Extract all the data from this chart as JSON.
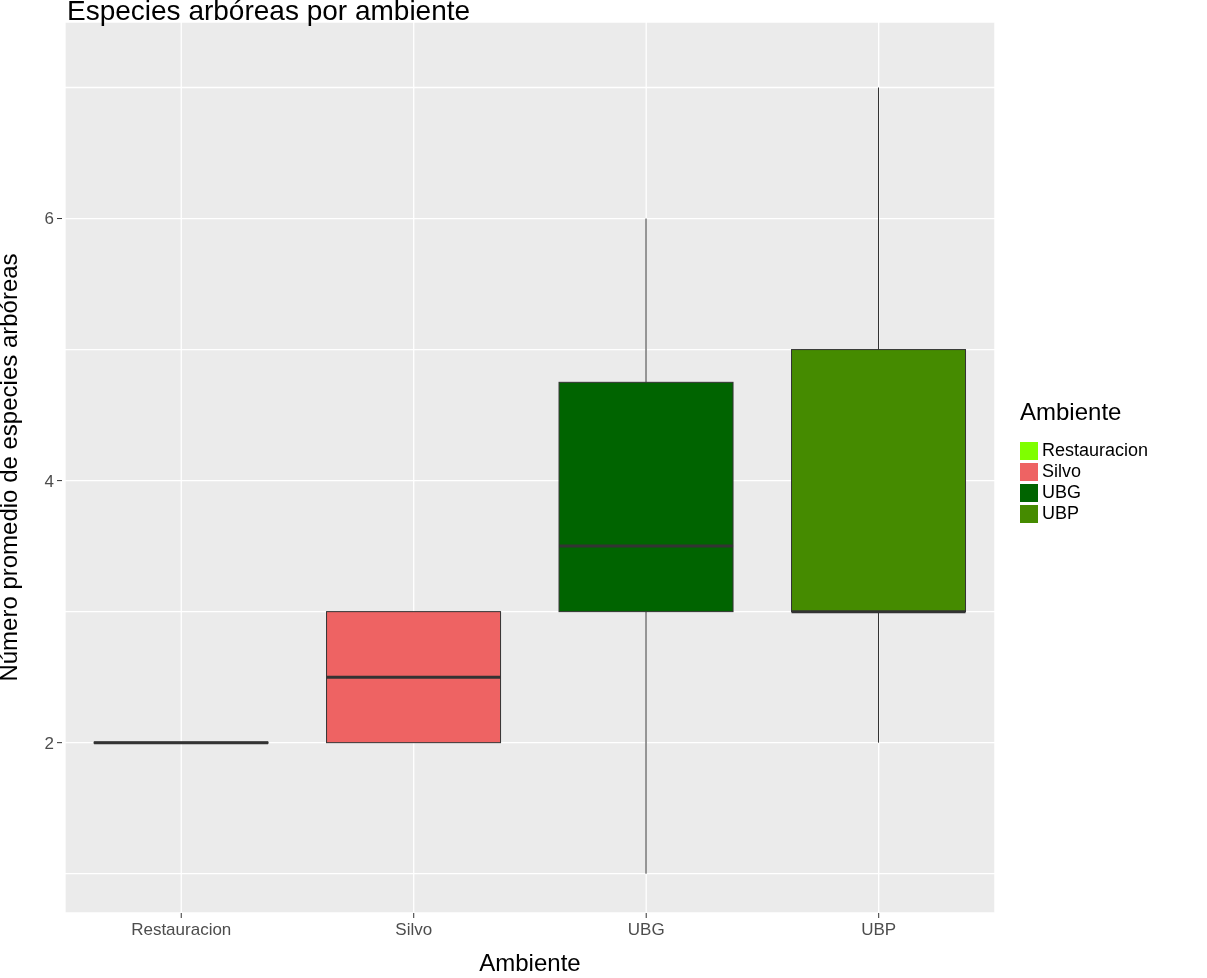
{
  "chart_data": {
    "type": "box",
    "title": "Especies arbóreas por ambiente",
    "xlabel": "Ambiente",
    "ylabel": "Número promedio de especies arbóreas",
    "legend_title": "Ambiente",
    "categories": [
      "Restauracion",
      "Silvo",
      "UBG",
      "UBP"
    ],
    "series": [
      {
        "name": "Restauracion",
        "color": "#7fff00",
        "boxes": [
          {
            "low": 2,
            "q1": 2,
            "median": 2,
            "q3": 2,
            "high": 2
          },
          null,
          null,
          null
        ]
      },
      {
        "name": "Silvo",
        "color": "#ee6363",
        "boxes": [
          null,
          {
            "low": 2,
            "q1": 2,
            "median": 2.5,
            "q3": 3,
            "high": 3
          },
          null,
          null
        ]
      },
      {
        "name": "UBG",
        "color": "#006400",
        "boxes": [
          null,
          null,
          {
            "low": 1,
            "q1": 3,
            "median": 3.5,
            "q3": 4.75,
            "high": 6
          },
          null
        ]
      },
      {
        "name": "UBP",
        "color": "#458b00",
        "boxes": [
          null,
          null,
          null,
          {
            "low": 2,
            "q1": 3,
            "median": 3,
            "q3": 5,
            "high": 7
          }
        ]
      }
    ],
    "ylim": [
      0.7,
      7.5
    ],
    "yticks": [
      {
        "value": 1,
        "label": null
      },
      2,
      {
        "value": 3,
        "label": null
      },
      4,
      {
        "value": 5,
        "label": null
      },
      6,
      {
        "value": 7,
        "label": null
      }
    ],
    "grid": true,
    "legend": "right"
  }
}
